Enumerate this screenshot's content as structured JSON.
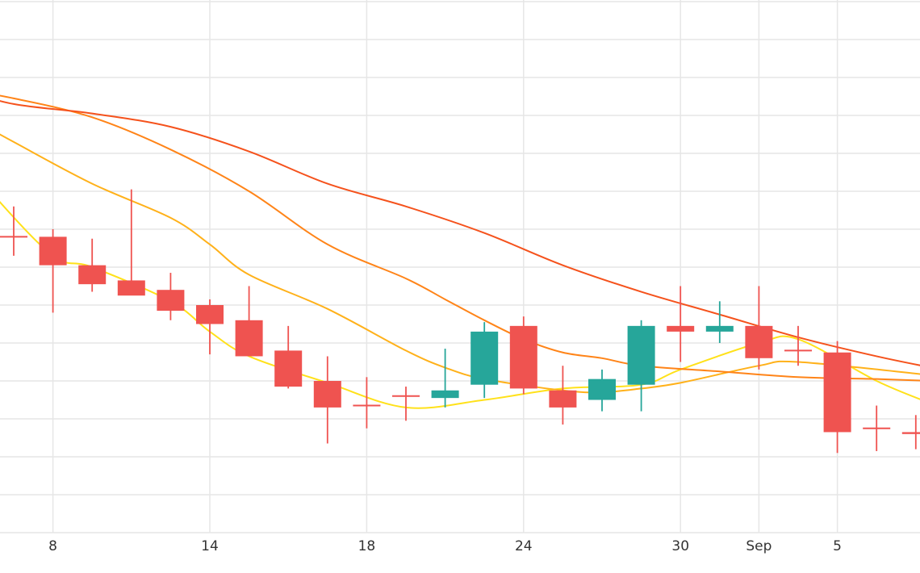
{
  "chart_data": {
    "type": "candlestick",
    "title": "",
    "xlabel": "",
    "ylabel": "",
    "x_ticks": [
      {
        "label": "8",
        "i": 1
      },
      {
        "label": "14",
        "i": 5
      },
      {
        "label": "18",
        "i": 9
      },
      {
        "label": "24",
        "i": 13
      },
      {
        "label": "30",
        "i": 17
      },
      {
        "label": "Sep",
        "i": 19
      },
      {
        "label": "5",
        "i": 21
      }
    ],
    "grid": true,
    "legend": "none",
    "colors": {
      "up": "#26a69a",
      "down": "#ef5350",
      "grid": "#e6e6e6",
      "ma": [
        "#ffe11a",
        "#ffb11a",
        "#ff8418",
        "#f5521c"
      ]
    },
    "ylim": [
      0,
      14
    ],
    "candles": [
      {
        "i": 0,
        "open": 7.8,
        "high": 8.6,
        "low": 7.3,
        "close": 7.8
      },
      {
        "i": 1,
        "open": 7.8,
        "high": 8.0,
        "low": 5.8,
        "close": 7.05
      },
      {
        "i": 2,
        "open": 7.05,
        "high": 7.75,
        "low": 6.35,
        "close": 6.55
      },
      {
        "i": 3,
        "open": 6.65,
        "high": 9.05,
        "low": 6.3,
        "close": 6.25
      },
      {
        "i": 4,
        "open": 6.4,
        "high": 6.85,
        "low": 5.6,
        "close": 5.85
      },
      {
        "i": 5,
        "open": 6.0,
        "high": 6.15,
        "low": 4.7,
        "close": 5.5
      },
      {
        "i": 6,
        "open": 5.6,
        "high": 6.5,
        "low": 4.75,
        "close": 4.65
      },
      {
        "i": 7,
        "open": 4.8,
        "high": 5.45,
        "low": 3.8,
        "close": 3.85
      },
      {
        "i": 8,
        "open": 4.0,
        "high": 4.65,
        "low": 2.35,
        "close": 3.3
      },
      {
        "i": 9,
        "open": 3.35,
        "high": 4.1,
        "low": 2.75,
        "close": 3.35
      },
      {
        "i": 10,
        "open": 3.6,
        "high": 3.85,
        "low": 2.95,
        "close": 3.6
      },
      {
        "i": 11,
        "open": 3.55,
        "high": 4.85,
        "low": 3.3,
        "close": 3.75
      },
      {
        "i": 12,
        "open": 3.9,
        "high": 5.55,
        "low": 3.55,
        "close": 5.3
      },
      {
        "i": 13,
        "open": 5.45,
        "high": 5.7,
        "low": 3.65,
        "close": 3.8
      },
      {
        "i": 14,
        "open": 3.75,
        "high": 4.4,
        "low": 2.85,
        "close": 3.3
      },
      {
        "i": 15,
        "open": 3.5,
        "high": 4.3,
        "low": 3.2,
        "close": 4.05
      },
      {
        "i": 16,
        "open": 3.9,
        "high": 5.6,
        "low": 3.2,
        "close": 5.45
      },
      {
        "i": 17,
        "open": 5.45,
        "high": 6.5,
        "low": 4.5,
        "close": 5.3
      },
      {
        "i": 18,
        "open": 5.3,
        "high": 6.1,
        "low": 5.0,
        "close": 5.45
      },
      {
        "i": 19,
        "open": 5.45,
        "high": 6.5,
        "low": 4.3,
        "close": 4.6
      },
      {
        "i": 20,
        "open": 4.8,
        "high": 5.45,
        "low": 4.4,
        "close": 4.8
      },
      {
        "i": 21,
        "open": 4.75,
        "high": 5.05,
        "low": 2.1,
        "close": 2.65
      },
      {
        "i": 22,
        "open": 2.75,
        "high": 3.35,
        "low": 2.15,
        "close": 2.75
      },
      {
        "i": 23,
        "open": 2.65,
        "high": 3.1,
        "low": 2.2,
        "close": 2.6
      }
    ],
    "moving_averages": [
      {
        "color": "#ffe11a",
        "points": [
          [
            -1.4,
            10.05
          ],
          [
            -0.6,
            9.0
          ],
          [
            1,
            7.3
          ],
          [
            2,
            7.0
          ],
          [
            4,
            6.1
          ],
          [
            5,
            5.3
          ],
          [
            6,
            4.65
          ],
          [
            8,
            3.95
          ],
          [
            10,
            3.3
          ],
          [
            12,
            3.5
          ],
          [
            14,
            3.8
          ],
          [
            16,
            3.9
          ],
          [
            17,
            4.3
          ],
          [
            19,
            5.0
          ],
          [
            20,
            5.1
          ],
          [
            22,
            4.0
          ],
          [
            23.4,
            3.4
          ]
        ]
      },
      {
        "color": "#ffb11a",
        "points": [
          [
            -1.4,
            11.1
          ],
          [
            0,
            10.3
          ],
          [
            2,
            9.2
          ],
          [
            4,
            8.3
          ],
          [
            5,
            7.6
          ],
          [
            6,
            6.8
          ],
          [
            8,
            5.9
          ],
          [
            10,
            4.8
          ],
          [
            11,
            4.35
          ],
          [
            12,
            4.05
          ],
          [
            14,
            3.75
          ],
          [
            15,
            3.7
          ],
          [
            16,
            3.8
          ],
          [
            17,
            3.95
          ],
          [
            19,
            4.4
          ],
          [
            20,
            4.5
          ],
          [
            23.4,
            4.15
          ]
        ]
      },
      {
        "color": "#ff8418",
        "points": [
          [
            -1.4,
            11.7
          ],
          [
            0,
            11.45
          ],
          [
            2,
            10.95
          ],
          [
            4,
            10.1
          ],
          [
            6,
            9.0
          ],
          [
            8,
            7.6
          ],
          [
            10,
            6.7
          ],
          [
            11,
            6.15
          ],
          [
            12,
            5.6
          ],
          [
            13,
            5.1
          ],
          [
            14,
            4.75
          ],
          [
            15,
            4.6
          ],
          [
            16,
            4.4
          ],
          [
            18,
            4.25
          ],
          [
            20,
            4.1
          ],
          [
            22,
            4.05
          ],
          [
            23.4,
            4.0
          ]
        ]
      },
      {
        "color": "#f5521c",
        "points": [
          [
            -1.4,
            11.7
          ],
          [
            0,
            11.3
          ],
          [
            2,
            11.05
          ],
          [
            4,
            10.7
          ],
          [
            6,
            10.05
          ],
          [
            8,
            9.2
          ],
          [
            10,
            8.6
          ],
          [
            12,
            7.9
          ],
          [
            14,
            7.05
          ],
          [
            16,
            6.35
          ],
          [
            18,
            5.75
          ],
          [
            20,
            5.15
          ],
          [
            22,
            4.65
          ],
          [
            23.4,
            4.35
          ]
        ]
      }
    ]
  }
}
